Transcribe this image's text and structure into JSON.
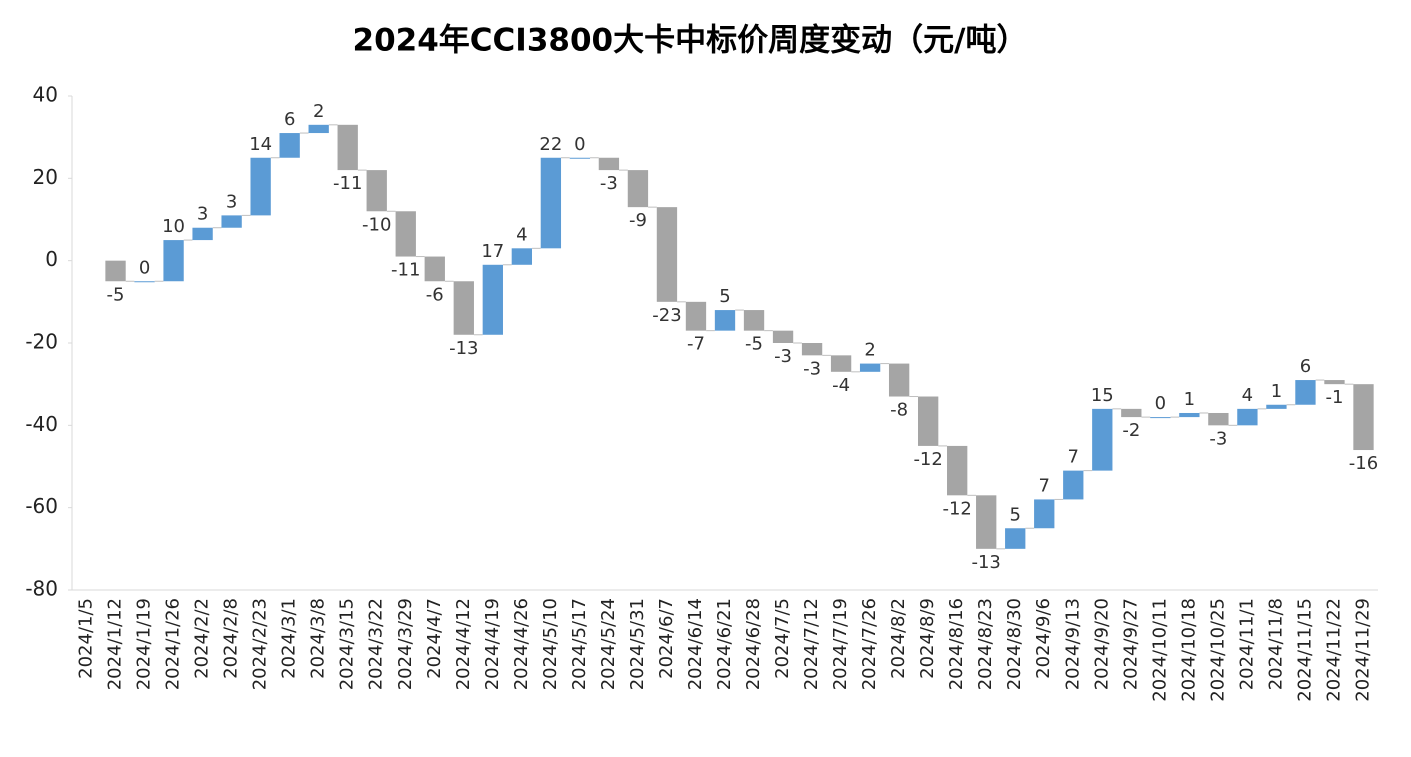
{
  "chart_data": {
    "type": "waterfall",
    "title": "2024年CCI3800大卡中标价周度变动（元/吨）",
    "categories": [
      "2024/1/5",
      "2024/1/12",
      "2024/1/19",
      "2024/1/26",
      "2024/2/2",
      "2024/2/8",
      "2024/2/23",
      "2024/3/1",
      "2024/3/8",
      "2024/3/15",
      "2024/3/22",
      "2024/3/29",
      "2024/4/7",
      "2024/4/12",
      "2024/4/19",
      "2024/4/26",
      "2024/5/10",
      "2024/5/17",
      "2024/5/24",
      "2024/5/31",
      "2024/6/7",
      "2024/6/14",
      "2024/6/21",
      "2024/6/28",
      "2024/7/5",
      "2024/7/12",
      "2024/7/19",
      "2024/7/26",
      "2024/8/2",
      "2024/8/9",
      "2024/8/16",
      "2024/8/23",
      "2024/8/30",
      "2024/9/6",
      "2024/9/13",
      "2024/9/20",
      "2024/9/27",
      "2024/10/11",
      "2024/10/18",
      "2024/10/25",
      "2024/11/1",
      "2024/11/8",
      "2024/11/15",
      "2024/11/22",
      "2024/11/29"
    ],
    "values": [
      null,
      -5,
      0,
      10,
      3,
      3,
      14,
      6,
      2,
      -11,
      -10,
      -11,
      -6,
      -13,
      17,
      4,
      22,
      0,
      -3,
      -9,
      -23,
      -7,
      5,
      -5,
      -3,
      -3,
      -4,
      2,
      -8,
      -12,
      -12,
      -13,
      5,
      7,
      7,
      15,
      -2,
      0,
      1,
      -3,
      4,
      1,
      6,
      -1,
      -16
    ],
    "colors": {
      "increase": "#5b9bd5",
      "decrease": "#a5a5a5"
    },
    "ylim": [
      -80,
      40
    ],
    "yticks": [
      -80,
      -60,
      -40,
      -20,
      0,
      20,
      40
    ],
    "grid": false
  }
}
